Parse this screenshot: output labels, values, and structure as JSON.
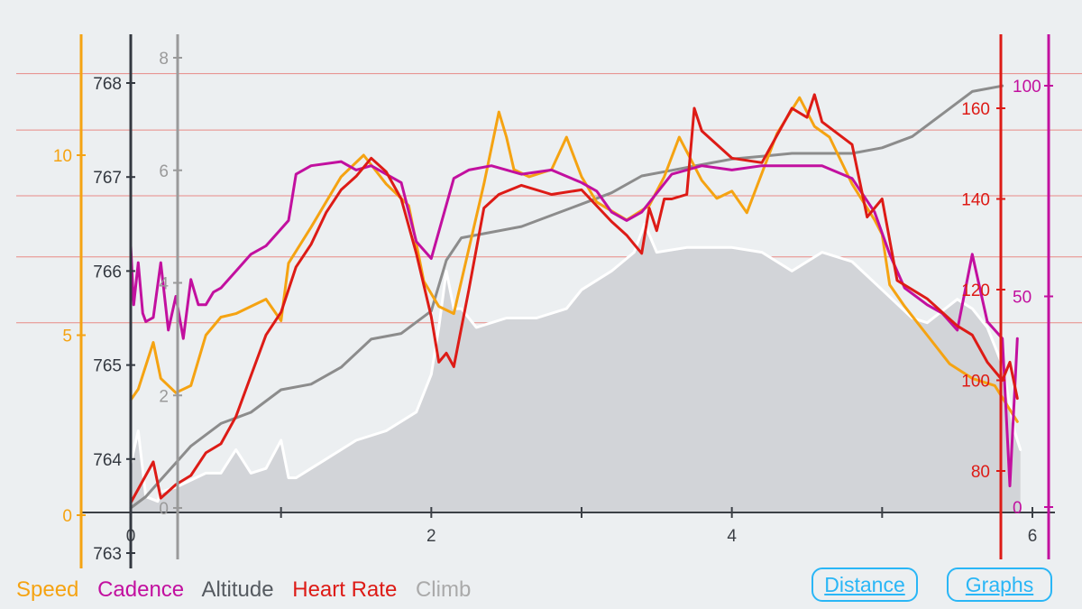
{
  "chart_data": {
    "type": "line",
    "x_axis": {
      "ticks": [
        "0",
        "2",
        "4",
        "6"
      ],
      "range": [
        0,
        6
      ]
    },
    "legend": [
      {
        "name": "Speed",
        "color": "#f5a312"
      },
      {
        "name": "Cadence",
        "color": "#c2109f"
      },
      {
        "name": "Altitude",
        "color": "#555a60"
      },
      {
        "name": "Heart Rate",
        "color": "#dd1b16"
      },
      {
        "name": "Climb",
        "color": "#aaaaaa"
      }
    ],
    "axes": {
      "speed": {
        "ticks": [
          "0",
          "5",
          "10"
        ],
        "color": "#f5a312",
        "range": [
          0,
          12
        ]
      },
      "altitude": {
        "ticks": [
          "763",
          "764",
          "765",
          "766",
          "767",
          "768"
        ],
        "color": "#333840",
        "range": [
          763,
          768
        ]
      },
      "climb": {
        "ticks": [
          "0",
          "2",
          "4",
          "6",
          "8"
        ],
        "color": "#9a9a9a",
        "range": [
          0,
          8
        ]
      },
      "heart_rate": {
        "ticks": [
          "80",
          "100",
          "120",
          "140",
          "160"
        ],
        "color": "#dd1b16",
        "range": [
          72,
          168
        ]
      },
      "cadence": {
        "ticks": [
          "0",
          "50",
          "100"
        ],
        "color": "#c2109f",
        "range": [
          0,
          100
        ]
      }
    },
    "series": [
      {
        "name": "Altitude",
        "color": "#ffffff",
        "fill": "#d2d4d8",
        "x": [
          0,
          0.05,
          0.1,
          0.18,
          0.2,
          0.3,
          0.5,
          0.6,
          0.7,
          0.8,
          0.9,
          1.0,
          1.05,
          1.1,
          1.2,
          1.3,
          1.5,
          1.7,
          1.9,
          2.0,
          2.05,
          2.1,
          2.15,
          2.2,
          2.3,
          2.5,
          2.7,
          2.9,
          3.0,
          3.2,
          3.35,
          3.42,
          3.5,
          3.7,
          4.0,
          4.2,
          4.4,
          4.6,
          4.8,
          5.0,
          5.2,
          5.3,
          5.5,
          5.6,
          5.7,
          5.8,
          5.88,
          5.92
        ],
        "y": [
          763.95,
          764.3,
          763.6,
          763.55,
          763.65,
          763.7,
          763.85,
          763.85,
          764.1,
          763.85,
          763.9,
          764.2,
          763.8,
          763.8,
          763.9,
          764.0,
          764.2,
          764.3,
          764.5,
          764.9,
          765.4,
          766.0,
          765.6,
          765.6,
          765.4,
          765.5,
          765.5,
          765.6,
          765.8,
          766.0,
          766.2,
          766.5,
          766.2,
          766.25,
          766.25,
          766.2,
          766.0,
          766.2,
          766.1,
          765.8,
          765.5,
          765.45,
          765.7,
          765.6,
          765.4,
          765.0,
          764.3,
          764.1
        ]
      },
      {
        "name": "Speed",
        "color": "#f5a312",
        "x": [
          0,
          0.05,
          0.15,
          0.2,
          0.3,
          0.4,
          0.5,
          0.6,
          0.7,
          0.8,
          0.9,
          1.0,
          1.05,
          1.2,
          1.4,
          1.55,
          1.7,
          1.85,
          1.95,
          2.05,
          2.15,
          2.25,
          2.35,
          2.45,
          2.5,
          2.55,
          2.65,
          2.8,
          2.9,
          3.0,
          3.1,
          3.3,
          3.45,
          3.55,
          3.65,
          3.8,
          3.9,
          4.0,
          4.1,
          4.3,
          4.45,
          4.55,
          4.65,
          4.8,
          4.95,
          5.0,
          5.05,
          5.15,
          5.3,
          5.45,
          5.6,
          5.75,
          5.9
        ],
        "y": [
          3.2,
          3.5,
          4.8,
          3.8,
          3.4,
          3.6,
          5.0,
          5.5,
          5.6,
          5.8,
          6.0,
          5.4,
          7.0,
          8.0,
          9.4,
          10.0,
          9.2,
          8.6,
          6.5,
          5.8,
          5.6,
          7.4,
          9.2,
          11.2,
          10.5,
          9.6,
          9.4,
          9.6,
          10.5,
          9.4,
          8.7,
          8.2,
          8.6,
          9.4,
          10.5,
          9.3,
          8.8,
          9.0,
          8.4,
          10.6,
          11.6,
          10.8,
          10.5,
          9.2,
          8.2,
          7.8,
          6.4,
          5.8,
          5.0,
          4.2,
          3.8,
          3.6,
          2.6
        ]
      },
      {
        "name": "Cadence",
        "color": "#c2109f",
        "x": [
          0,
          0.02,
          0.05,
          0.08,
          0.1,
          0.15,
          0.2,
          0.25,
          0.3,
          0.35,
          0.4,
          0.45,
          0.5,
          0.55,
          0.6,
          0.7,
          0.8,
          0.9,
          1.0,
          1.05,
          1.1,
          1.2,
          1.4,
          1.5,
          1.6,
          1.8,
          1.9,
          2.0,
          2.15,
          2.25,
          2.4,
          2.6,
          2.8,
          3.0,
          3.1,
          3.2,
          3.3,
          3.4,
          3.6,
          3.8,
          4.0,
          4.2,
          4.4,
          4.6,
          4.8,
          4.95,
          5.05,
          5.15,
          5.3,
          5.4,
          5.5,
          5.6,
          5.7,
          5.8,
          5.85,
          5.9
        ],
        "y": [
          62,
          48,
          58,
          46,
          44,
          45,
          58,
          42,
          50,
          40,
          54,
          48,
          48,
          51,
          52,
          56,
          60,
          62,
          66,
          68,
          79,
          81,
          82,
          80,
          81,
          77,
          63,
          59,
          78,
          80,
          81,
          79,
          80,
          77,
          75,
          70,
          68,
          70,
          79,
          81,
          80,
          81,
          81,
          81,
          78,
          70,
          60,
          52,
          48,
          46,
          42,
          60,
          44,
          40,
          5,
          40
        ]
      },
      {
        "name": "Climb",
        "color": "#8c8c8c",
        "x": [
          0,
          0.1,
          0.2,
          0.3,
          0.4,
          0.5,
          0.6,
          0.7,
          0.8,
          0.9,
          1.0,
          1.2,
          1.4,
          1.6,
          1.8,
          2.0,
          2.1,
          2.2,
          2.4,
          2.6,
          2.8,
          3.0,
          3.2,
          3.4,
          3.6,
          3.8,
          4.0,
          4.2,
          4.4,
          4.6,
          4.8,
          5.0,
          5.2,
          5.4,
          5.6,
          5.8
        ],
        "y": [
          0,
          0.2,
          0.5,
          0.8,
          1.1,
          1.3,
          1.5,
          1.6,
          1.7,
          1.9,
          2.1,
          2.2,
          2.5,
          3.0,
          3.1,
          3.5,
          4.4,
          4.8,
          4.9,
          5.0,
          5.2,
          5.4,
          5.6,
          5.9,
          6.0,
          6.1,
          6.2,
          6.25,
          6.3,
          6.3,
          6.3,
          6.4,
          6.6,
          7.0,
          7.4,
          7.5
        ]
      },
      {
        "name": "Heart Rate",
        "color": "#dd1b16",
        "x": [
          0,
          0.05,
          0.15,
          0.2,
          0.3,
          0.4,
          0.5,
          0.6,
          0.7,
          0.8,
          0.9,
          1.0,
          1.1,
          1.2,
          1.3,
          1.4,
          1.5,
          1.6,
          1.7,
          1.8,
          1.9,
          2.0,
          2.05,
          2.1,
          2.15,
          2.25,
          2.35,
          2.45,
          2.6,
          2.8,
          3.0,
          3.2,
          3.3,
          3.35,
          3.4,
          3.45,
          3.5,
          3.55,
          3.6,
          3.7,
          3.75,
          3.8,
          4.0,
          4.2,
          4.4,
          4.5,
          4.55,
          4.6,
          4.8,
          4.9,
          5.0,
          5.1,
          5.3,
          5.5,
          5.6,
          5.7,
          5.8,
          5.85,
          5.9
        ],
        "y": [
          73,
          76,
          82,
          74,
          77,
          79,
          84,
          86,
          92,
          101,
          110,
          115,
          125,
          130,
          137,
          142,
          145,
          149,
          146,
          140,
          128,
          114,
          104,
          106,
          103,
          120,
          138,
          141,
          143,
          141,
          142,
          135,
          132,
          130,
          128,
          138,
          133,
          140,
          140,
          141,
          160,
          155,
          149,
          148,
          160,
          158,
          163,
          157,
          152,
          136,
          140,
          122,
          118,
          112,
          110,
          104,
          100,
          104,
          96
        ]
      }
    ]
  },
  "legend_labels": [
    "Speed",
    "Cadence",
    "Altitude",
    "Heart Rate",
    "Climb"
  ],
  "buttons": {
    "distance": "Distance",
    "graphs": "Graphs"
  }
}
